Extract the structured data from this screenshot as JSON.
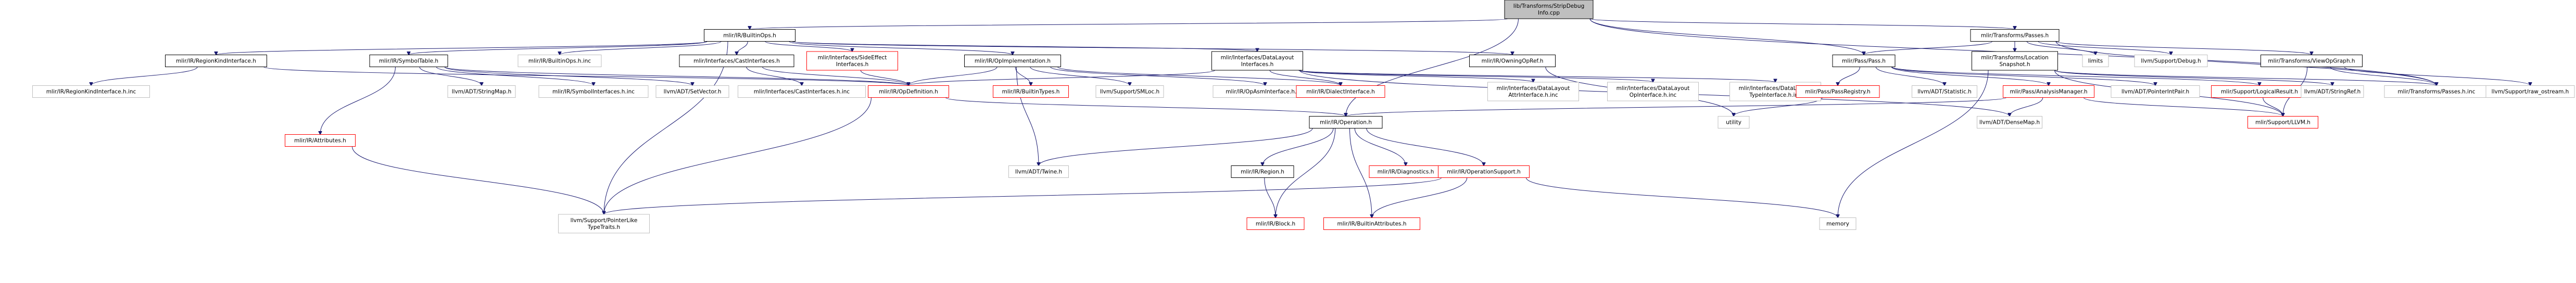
{
  "colors": {
    "root_fill": "#bfbfbf",
    "default_fill": "#ffffff",
    "default_border": "#000000",
    "external_border": "#bfbfbf",
    "undocumented_border": "#ff0000",
    "edge": "#191970"
  },
  "nodes": [
    {
      "id": "root",
      "lines": [
        "lib/Transforms/StripDebug",
        "Info.cpp"
      ],
      "kind": "root"
    },
    {
      "id": "builtinops",
      "lines": [
        "mlir/IR/BuiltinOps.h"
      ],
      "kind": "doc"
    },
    {
      "id": "regionkind",
      "lines": [
        "mlir/IR/RegionKindInterface.h"
      ],
      "kind": "doc"
    },
    {
      "id": "symboltable",
      "lines": [
        "mlir/IR/SymbolTable.h"
      ],
      "kind": "doc"
    },
    {
      "id": "builtinopsinc",
      "lines": [
        "mlir/IR/BuiltinOps.h.inc"
      ],
      "kind": "ext"
    },
    {
      "id": "castinterfaces",
      "lines": [
        "mlir/Interfaces/CastInterfaces.h"
      ],
      "kind": "doc"
    },
    {
      "id": "sideeffect",
      "lines": [
        "mlir/Interfaces/SideEffect",
        "Interfaces.h"
      ],
      "kind": "undoc"
    },
    {
      "id": "opimpl",
      "lines": [
        "mlir/IR/OpImplementation.h"
      ],
      "kind": "doc"
    },
    {
      "id": "datalayout",
      "lines": [
        "mlir/Interfaces/DataLayout",
        "Interfaces.h"
      ],
      "kind": "doc"
    },
    {
      "id": "owningopref",
      "lines": [
        "mlir/IR/OwningOpRef.h"
      ],
      "kind": "doc"
    },
    {
      "id": "transformspasses",
      "lines": [
        "mlir/Transforms/Passes.h"
      ],
      "kind": "doc"
    },
    {
      "id": "passpass",
      "lines": [
        "mlir/Pass/Pass.h"
      ],
      "kind": "doc"
    },
    {
      "id": "location",
      "lines": [
        "mlir/Transforms/Location",
        "Snapshot.h"
      ],
      "kind": "doc"
    },
    {
      "id": "limits",
      "lines": [
        "limits"
      ],
      "kind": "ext"
    },
    {
      "id": "debugh",
      "lines": [
        "llvm/Support/Debug.h"
      ],
      "kind": "ext"
    },
    {
      "id": "viewopgraph",
      "lines": [
        "mlir/Transforms/ViewOpGraph.h"
      ],
      "kind": "doc"
    },
    {
      "id": "regionkindinc",
      "lines": [
        "mlir/IR/RegionKindInterface.h.inc"
      ],
      "kind": "ext"
    },
    {
      "id": "attributes",
      "lines": [
        "mlir/IR/Attributes.h"
      ],
      "kind": "undoc"
    },
    {
      "id": "stringmap",
      "lines": [
        "llvm/ADT/StringMap.h"
      ],
      "kind": "ext"
    },
    {
      "id": "symbolinc",
      "lines": [
        "mlir/IR/SymbolInterfaces.h.inc"
      ],
      "kind": "ext"
    },
    {
      "id": "setvector",
      "lines": [
        "llvm/ADT/SetVector.h"
      ],
      "kind": "ext"
    },
    {
      "id": "castinc",
      "lines": [
        "mlir/Interfaces/CastInterfaces.h.inc"
      ],
      "kind": "ext"
    },
    {
      "id": "opdefinition",
      "lines": [
        "mlir/IR/OpDefinition.h"
      ],
      "kind": "undoc"
    },
    {
      "id": "builtintypes",
      "lines": [
        "mlir/IR/BuiltinTypes.h"
      ],
      "kind": "undoc"
    },
    {
      "id": "smloc",
      "lines": [
        "llvm/Support/SMLoc.h"
      ],
      "kind": "ext"
    },
    {
      "id": "opasminc",
      "lines": [
        "mlir/IR/OpAsmInterface.h.inc"
      ],
      "kind": "ext"
    },
    {
      "id": "dialectinterface",
      "lines": [
        "mlir/IR/DialectInterface.h"
      ],
      "kind": "undoc"
    },
    {
      "id": "dlattrinc",
      "lines": [
        "mlir/Interfaces/DataLayout",
        "AttrInterface.h.inc"
      ],
      "kind": "ext"
    },
    {
      "id": "dlopinc",
      "lines": [
        "mlir/Interfaces/DataLayout",
        "OpInterface.h.inc"
      ],
      "kind": "ext"
    },
    {
      "id": "dltypeinc",
      "lines": [
        "mlir/Interfaces/DataLayout",
        "TypeInterface.h.inc"
      ],
      "kind": "ext"
    },
    {
      "id": "passregistry",
      "lines": [
        "mlir/Pass/PassRegistry.h"
      ],
      "kind": "undoc"
    },
    {
      "id": "statistic",
      "lines": [
        "llvm/ADT/Statistic.h"
      ],
      "kind": "ext"
    },
    {
      "id": "analysismanager",
      "lines": [
        "mlir/Pass/AnalysisManager.h"
      ],
      "kind": "undoc"
    },
    {
      "id": "pointerintpair",
      "lines": [
        "llvm/ADT/PointerIntPair.h"
      ],
      "kind": "ext"
    },
    {
      "id": "logicalresult",
      "lines": [
        "mlir/Support/LogicalResult.h"
      ],
      "kind": "undoc"
    },
    {
      "id": "stringref",
      "lines": [
        "llvm/ADT/StringRef.h"
      ],
      "kind": "ext"
    },
    {
      "id": "passesinc",
      "lines": [
        "mlir/Transforms/Passes.h.inc"
      ],
      "kind": "ext"
    },
    {
      "id": "rawostream",
      "lines": [
        "llvm/Support/raw_ostream.h"
      ],
      "kind": "ext"
    },
    {
      "id": "utility",
      "lines": [
        "utility"
      ],
      "kind": "ext"
    },
    {
      "id": "operation",
      "lines": [
        "mlir/IR/Operation.h"
      ],
      "kind": "doc"
    },
    {
      "id": "densemap",
      "lines": [
        "llvm/ADT/DenseMap.h"
      ],
      "kind": "ext"
    },
    {
      "id": "llvmh",
      "lines": [
        "mlir/Support/LLVM.h"
      ],
      "kind": "undoc"
    },
    {
      "id": "twine",
      "lines": [
        "llvm/ADT/Twine.h"
      ],
      "kind": "ext"
    },
    {
      "id": "regionh",
      "lines": [
        "mlir/IR/Region.h"
      ],
      "kind": "doc"
    },
    {
      "id": "diagnostics",
      "lines": [
        "mlir/IR/Diagnostics.h"
      ],
      "kind": "undoc"
    },
    {
      "id": "opsupport",
      "lines": [
        "mlir/IR/OperationSupport.h"
      ],
      "kind": "undoc"
    },
    {
      "id": "pointerlike",
      "lines": [
        "llvm/Support/PointerLike",
        "TypeTraits.h"
      ],
      "kind": "ext"
    },
    {
      "id": "block",
      "lines": [
        "mlir/IR/Block.h"
      ],
      "kind": "undoc"
    },
    {
      "id": "builtinattrs",
      "lines": [
        "mlir/IR/BuiltinAttributes.h"
      ],
      "kind": "undoc"
    },
    {
      "id": "memory",
      "lines": [
        "memory"
      ],
      "kind": "ext"
    }
  ],
  "edges": [
    [
      "root",
      "builtinops"
    ],
    [
      "root",
      "transformspasses"
    ],
    [
      "root",
      "passpass"
    ],
    [
      "root",
      "operation"
    ],
    [
      "root",
      "passesinc"
    ],
    [
      "builtinops",
      "regionkind"
    ],
    [
      "builtinops",
      "symboltable"
    ],
    [
      "builtinops",
      "builtinopsinc"
    ],
    [
      "builtinops",
      "castinterfaces"
    ],
    [
      "builtinops",
      "sideeffect"
    ],
    [
      "builtinops",
      "opimpl"
    ],
    [
      "builtinops",
      "datalayout"
    ],
    [
      "builtinops",
      "owningopref"
    ],
    [
      "builtinops",
      "pointerlike"
    ],
    [
      "regionkind",
      "regionkindinc"
    ],
    [
      "regionkind",
      "opdefinition"
    ],
    [
      "symboltable",
      "attributes"
    ],
    [
      "symboltable",
      "stringmap"
    ],
    [
      "symboltable",
      "symbolinc"
    ],
    [
      "symboltable",
      "setvector"
    ],
    [
      "symboltable",
      "opdefinition"
    ],
    [
      "castinterfaces",
      "castinc"
    ],
    [
      "castinterfaces",
      "opdefinition"
    ],
    [
      "sideeffect",
      "opdefinition"
    ],
    [
      "opimpl",
      "opdefinition"
    ],
    [
      "opimpl",
      "builtintypes"
    ],
    [
      "opimpl",
      "smloc"
    ],
    [
      "opimpl",
      "opasminc"
    ],
    [
      "opimpl",
      "dialectinterface"
    ],
    [
      "opimpl",
      "twine"
    ],
    [
      "datalayout",
      "dlattrinc"
    ],
    [
      "datalayout",
      "dlopinc"
    ],
    [
      "datalayout",
      "dltypeinc"
    ],
    [
      "datalayout",
      "opdefinition"
    ],
    [
      "datalayout",
      "dialectinterface"
    ],
    [
      "datalayout",
      "densemap"
    ],
    [
      "owningopref",
      "utility"
    ],
    [
      "transformspasses",
      "passpass"
    ],
    [
      "transformspasses",
      "location"
    ],
    [
      "transformspasses",
      "limits"
    ],
    [
      "transformspasses",
      "debugh"
    ],
    [
      "transformspasses",
      "viewopgraph"
    ],
    [
      "transformspasses",
      "passesinc"
    ],
    [
      "passpass",
      "passregistry"
    ],
    [
      "passpass",
      "statistic"
    ],
    [
      "passpass",
      "analysismanager"
    ],
    [
      "passpass",
      "pointerintpair"
    ],
    [
      "passpass",
      "logicalresult"
    ],
    [
      "location",
      "stringref"
    ],
    [
      "location",
      "passesinc"
    ],
    [
      "location",
      "llvmh"
    ],
    [
      "location",
      "memory"
    ],
    [
      "viewopgraph",
      "rawostream"
    ],
    [
      "viewopgraph",
      "passesinc"
    ],
    [
      "viewopgraph",
      "llvmh"
    ],
    [
      "attributes",
      "pointerlike"
    ],
    [
      "opdefinition",
      "operation"
    ],
    [
      "opdefinition",
      "pointerlike"
    ],
    [
      "passregistry",
      "utility"
    ],
    [
      "analysismanager",
      "operation"
    ],
    [
      "analysismanager",
      "densemap"
    ],
    [
      "analysismanager",
      "llvmh"
    ],
    [
      "logicalresult",
      "llvmh"
    ],
    [
      "operation",
      "twine"
    ],
    [
      "operation",
      "regionh"
    ],
    [
      "operation",
      "diagnostics"
    ],
    [
      "operation",
      "opsupport"
    ],
    [
      "operation",
      "block"
    ],
    [
      "operation",
      "builtinattrs"
    ],
    [
      "regionh",
      "block"
    ],
    [
      "opsupport",
      "pointerlike"
    ],
    [
      "opsupport",
      "builtinattrs"
    ],
    [
      "opsupport",
      "memory"
    ]
  ]
}
